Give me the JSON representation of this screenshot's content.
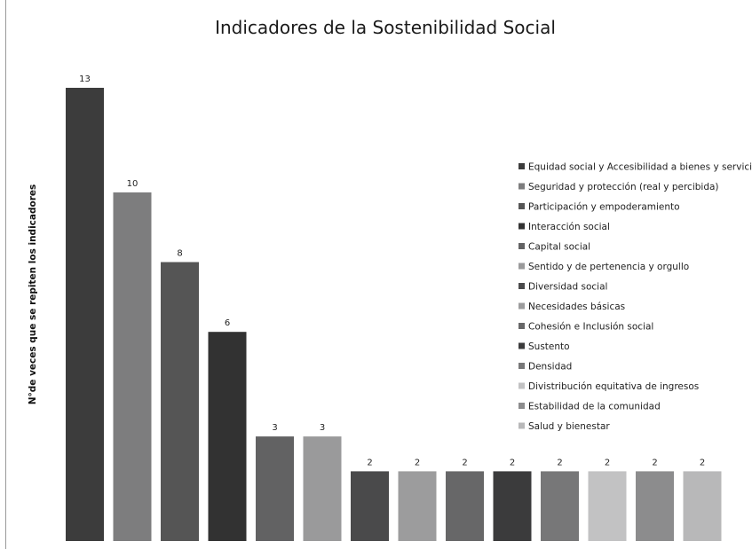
{
  "chart_data": {
    "type": "bar",
    "title": "Indicadores de la Sostenibilidad Social",
    "xlabel": "",
    "ylabel": "N°de veces que se repiten los indicadores",
    "ylim": [
      0,
      13
    ],
    "grid": false,
    "legend_position": "right",
    "categories": [
      "Equidad social y Accesibilidad a bienes y servicios",
      "Seguridad y protección (real y percibida)",
      "Participación y empoderamiento",
      "Interacción social",
      "Capital social",
      "Sentido y de pertenencia y orgullo",
      "Diversidad social",
      "Necesidades básicas",
      "Cohesión e Inclusión social",
      "Sustento",
      "Densidad",
      "Divistribución equitativa de ingresos",
      "Estabilidad de la comunidad",
      "Salud y bienestar"
    ],
    "values": [
      13,
      10,
      8,
      6,
      3,
      3,
      2,
      2,
      2,
      2,
      2,
      2,
      2,
      2
    ],
    "colors": [
      "#3c3c3c",
      "#7d7d7e",
      "#555555",
      "#323232",
      "#626263",
      "#9a9a9b",
      "#4a4a4b",
      "#9c9c9d",
      "#676768",
      "#3b3b3c",
      "#777778",
      "#c2c2c3",
      "#8c8c8d",
      "#b8b8b9"
    ]
  }
}
